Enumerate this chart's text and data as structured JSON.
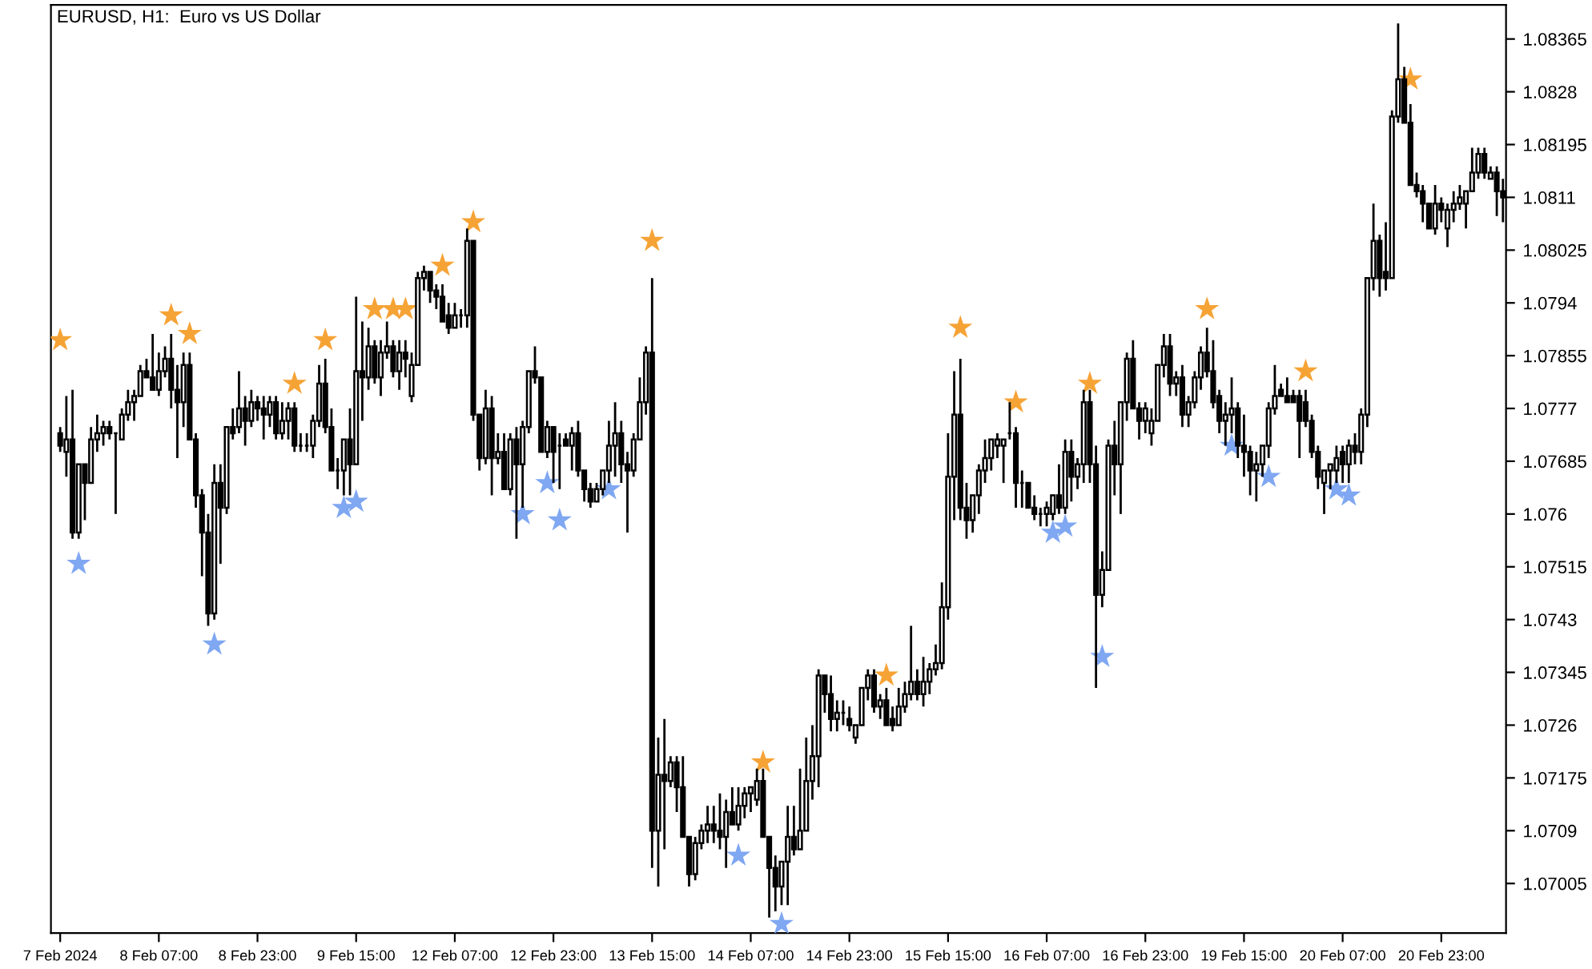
{
  "chart_data": {
    "type": "candlestick",
    "title": "EURUSD, H1:  Euro vs US Dollar",
    "categories": [
      "7 Feb 2024",
      null,
      null,
      null,
      null,
      null,
      null,
      null,
      null,
      null,
      null,
      null,
      null,
      null,
      null,
      null,
      "8 Feb 07:00",
      null,
      null,
      null,
      null,
      null,
      null,
      null,
      null,
      null,
      null,
      null,
      null,
      null,
      null,
      null,
      "8 Feb 23:00",
      null,
      null,
      null,
      null,
      null,
      null,
      null,
      null,
      null,
      null,
      null,
      null,
      null,
      null,
      null,
      "9 Feb 15:00",
      null,
      null,
      null,
      null,
      null,
      null,
      null,
      null,
      null,
      null,
      null,
      null,
      null,
      null,
      null,
      "12 Feb 07:00",
      null,
      null,
      null,
      null,
      null,
      null,
      null,
      null,
      null,
      null,
      null,
      null,
      null,
      null,
      null,
      "12 Feb 23:00",
      null,
      null,
      null,
      null,
      null,
      null,
      null,
      null,
      null,
      null,
      null,
      null,
      null,
      null,
      null,
      "13 Feb 15:00",
      null,
      null,
      null,
      null,
      null,
      null,
      null,
      null,
      null,
      null,
      null,
      null,
      null,
      null,
      null,
      "14 Feb 07:00",
      null,
      null,
      null,
      null,
      null,
      null,
      null,
      null,
      null,
      null,
      null,
      null,
      null,
      null,
      null,
      "14 Feb 23:00",
      null,
      null,
      null,
      null,
      null,
      null,
      null,
      null,
      null,
      null,
      null,
      null,
      null,
      null,
      null,
      "15 Feb 15:00",
      null,
      null,
      null,
      null,
      null,
      null,
      null,
      null,
      null,
      null,
      null,
      null,
      null,
      null,
      null,
      "16 Feb 07:00",
      null,
      null,
      null,
      null,
      null,
      null,
      null,
      null,
      null,
      null,
      null,
      null,
      null,
      null,
      null,
      "16 Feb 23:00",
      null,
      null,
      null,
      null,
      null,
      null,
      null,
      null,
      null,
      null,
      null,
      null,
      null,
      null,
      null,
      "19 Feb 15:00",
      null,
      null,
      null,
      null,
      null,
      null,
      null,
      null,
      null,
      null,
      null,
      null,
      null,
      null,
      null,
      "20 Feb 07:00",
      null,
      null,
      null,
      null,
      null,
      null,
      null,
      null,
      null,
      null,
      null,
      null,
      null,
      null,
      null,
      "20 Feb 23:00",
      null,
      null,
      null,
      null,
      null,
      null,
      null,
      null,
      null,
      null
    ],
    "ohlc": [
      [
        1.0773,
        1.0774,
        1.077,
        1.0771
      ],
      [
        1.077,
        1.0779,
        1.0766,
        1.0772
      ],
      [
        1.0772,
        1.078,
        1.0756,
        1.0757
      ],
      [
        1.0757,
        1.0768,
        1.0756,
        1.0768
      ],
      [
        1.0768,
        1.0768,
        1.0759,
        1.0765
      ],
      [
        1.0765,
        1.0774,
        1.0765,
        1.0772
      ],
      [
        1.0772,
        1.0776,
        1.077,
        1.0773
      ],
      [
        1.0773,
        1.0775,
        1.0771,
        1.0774
      ],
      [
        1.0774,
        1.0775,
        1.0772,
        1.0773
      ],
      [
        1.0773,
        1.0773,
        1.076,
        1.0773
      ],
      [
        1.0772,
        1.0777,
        1.0772,
        1.0776
      ],
      [
        1.0776,
        1.078,
        1.0775,
        1.0778
      ],
      [
        1.0778,
        1.078,
        1.0775,
        1.0779
      ],
      [
        1.0779,
        1.0784,
        1.0779,
        1.0783
      ],
      [
        1.0783,
        1.0785,
        1.0782,
        1.0782
      ],
      [
        1.0782,
        1.0789,
        1.078,
        1.078
      ],
      [
        1.078,
        1.0786,
        1.0779,
        1.0783
      ],
      [
        1.0783,
        1.0787,
        1.0782,
        1.0785
      ],
      [
        1.0785,
        1.0789,
        1.0777,
        1.078
      ],
      [
        1.078,
        1.0784,
        1.0769,
        1.0778
      ],
      [
        1.0778,
        1.0786,
        1.0774,
        1.0784
      ],
      [
        1.0784,
        1.0786,
        1.0772,
        1.0772
      ],
      [
        1.0772,
        1.0773,
        1.0761,
        1.0763
      ],
      [
        1.0763,
        1.0764,
        1.075,
        1.0757
      ],
      [
        1.0757,
        1.076,
        1.0742,
        1.0744
      ],
      [
        1.0744,
        1.0768,
        1.0743,
        1.0765
      ],
      [
        1.0765,
        1.0768,
        1.0752,
        1.0761
      ],
      [
        1.0761,
        1.0774,
        1.076,
        1.0774
      ],
      [
        1.0774,
        1.0777,
        1.0772,
        1.0773
      ],
      [
        1.0774,
        1.0783,
        1.0773,
        1.0777
      ],
      [
        1.0777,
        1.0779,
        1.0771,
        1.0775
      ],
      [
        1.0775,
        1.078,
        1.0774,
        1.0778
      ],
      [
        1.0778,
        1.0779,
        1.0775,
        1.0777
      ],
      [
        1.0777,
        1.0779,
        1.0772,
        1.0776
      ],
      [
        1.0776,
        1.0779,
        1.0774,
        1.0778
      ],
      [
        1.0778,
        1.0779,
        1.0772,
        1.0773
      ],
      [
        1.0773,
        1.0778,
        1.0772,
        1.0775
      ],
      [
        1.0775,
        1.0778,
        1.0772,
        1.0777
      ],
      [
        1.0777,
        1.0778,
        1.077,
        1.0771
      ],
      [
        1.0771,
        1.0773,
        1.077,
        1.0771
      ],
      [
        1.0771,
        1.0773,
        1.077,
        1.0771
      ],
      [
        1.0771,
        1.0776,
        1.0769,
        1.0775
      ],
      [
        1.0775,
        1.0784,
        1.0774,
        1.0781
      ],
      [
        1.0781,
        1.0785,
        1.0773,
        1.0774
      ],
      [
        1.0774,
        1.0777,
        1.0767,
        1.0767
      ],
      [
        1.0767,
        1.0769,
        1.0764,
        1.0767
      ],
      [
        1.0767,
        1.0772,
        1.0763,
        1.0772
      ],
      [
        1.0772,
        1.0777,
        1.0763,
        1.0768
      ],
      [
        1.0768,
        1.0795,
        1.0768,
        1.0783
      ],
      [
        1.0783,
        1.0791,
        1.0775,
        1.0782
      ],
      [
        1.0782,
        1.079,
        1.078,
        1.0787
      ],
      [
        1.0787,
        1.0788,
        1.0781,
        1.0782
      ],
      [
        1.0782,
        1.0788,
        1.0779,
        1.0786
      ],
      [
        1.0786,
        1.0791,
        1.0785,
        1.0787
      ],
      [
        1.0787,
        1.0788,
        1.0782,
        1.0783
      ],
      [
        1.0783,
        1.0788,
        1.078,
        1.0786
      ],
      [
        1.0786,
        1.0788,
        1.0782,
        1.0785
      ],
      [
        1.0779,
        1.0786,
        1.0778,
        1.0784
      ],
      [
        1.0784,
        1.0799,
        1.0784,
        1.0798
      ],
      [
        1.0798,
        1.08,
        1.0796,
        1.0799
      ],
      [
        1.0799,
        1.0799,
        1.0794,
        1.0796
      ],
      [
        1.0796,
        1.0797,
        1.0793,
        1.0795
      ],
      [
        1.0795,
        1.0797,
        1.0791,
        1.0791
      ],
      [
        1.0792,
        1.0794,
        1.0789,
        1.079
      ],
      [
        1.079,
        1.0794,
        1.079,
        1.0792
      ],
      [
        1.0792,
        1.0793,
        1.079,
        1.0792
      ],
      [
        1.0792,
        1.0806,
        1.079,
        1.0804
      ],
      [
        1.0804,
        1.0804,
        1.0775,
        1.0776
      ],
      [
        1.0776,
        1.0776,
        1.0767,
        1.0769
      ],
      [
        1.0769,
        1.078,
        1.0768,
        1.0777
      ],
      [
        1.0777,
        1.0779,
        1.0763,
        1.0769
      ],
      [
        1.0769,
        1.0773,
        1.0768,
        1.077
      ],
      [
        1.077,
        1.0773,
        1.0764,
        1.0764
      ],
      [
        1.0764,
        1.0773,
        1.0763,
        1.0772
      ],
      [
        1.0772,
        1.0774,
        1.0756,
        1.0768
      ],
      [
        1.0768,
        1.0775,
        1.0761,
        1.0774
      ],
      [
        1.0774,
        1.0783,
        1.0773,
        1.0783
      ],
      [
        1.0783,
        1.0787,
        1.0781,
        1.0782
      ],
      [
        1.0782,
        1.0782,
        1.077,
        1.077
      ],
      [
        1.077,
        1.0775,
        1.0769,
        1.0774
      ],
      [
        1.0774,
        1.0774,
        1.0765,
        1.077
      ],
      [
        1.0771,
        1.0773,
        1.0764,
        1.0771
      ],
      [
        1.0772,
        1.0773,
        1.0771,
        1.0771
      ],
      [
        1.0771,
        1.0774,
        1.0767,
        1.0773
      ],
      [
        1.0773,
        1.0775,
        1.0766,
        1.0767
      ],
      [
        1.0767,
        1.0767,
        1.0762,
        1.0764
      ],
      [
        1.0764,
        1.0765,
        1.0761,
        1.0762
      ],
      [
        1.0762,
        1.0765,
        1.0762,
        1.0764
      ],
      [
        1.0764,
        1.0767,
        1.0763,
        1.0767
      ],
      [
        1.0767,
        1.0775,
        1.0765,
        1.0771
      ],
      [
        1.0771,
        1.0778,
        1.0766,
        1.0773
      ],
      [
        1.0773,
        1.0775,
        1.0765,
        1.0768
      ],
      [
        1.0768,
        1.077,
        1.0757,
        1.0767
      ],
      [
        1.0767,
        1.0773,
        1.0766,
        1.0772
      ],
      [
        1.0772,
        1.0782,
        1.0772,
        1.0778
      ],
      [
        1.0778,
        1.0787,
        1.0776,
        1.0786
      ],
      [
        1.0786,
        1.0798,
        1.0703,
        1.0709
      ],
      [
        1.0709,
        1.0724,
        1.07,
        1.0718
      ],
      [
        1.0718,
        1.0727,
        1.0706,
        1.0717
      ],
      [
        1.0717,
        1.0721,
        1.0716,
        1.072
      ],
      [
        1.072,
        1.0721,
        1.0712,
        1.0716
      ],
      [
        1.0716,
        1.0721,
        1.0708,
        1.0708
      ],
      [
        1.0708,
        1.0708,
        1.07,
        1.0702
      ],
      [
        1.0702,
        1.0708,
        1.0701,
        1.0707
      ],
      [
        1.0707,
        1.071,
        1.0706,
        1.0709
      ],
      [
        1.0709,
        1.0713,
        1.0707,
        1.071
      ],
      [
        1.071,
        1.0713,
        1.0707,
        1.0709
      ],
      [
        1.0709,
        1.0715,
        1.0706,
        1.0708
      ],
      [
        1.0708,
        1.0714,
        1.0703,
        1.0712
      ],
      [
        1.0712,
        1.0716,
        1.071,
        1.071
      ],
      [
        1.071,
        1.0716,
        1.0709,
        1.0713
      ],
      [
        1.0713,
        1.0716,
        1.0711,
        1.0715
      ],
      [
        1.0715,
        1.0716,
        1.0712,
        1.0716
      ],
      [
        1.0714,
        1.0719,
        1.0713,
        1.0717
      ],
      [
        1.0717,
        1.0719,
        1.0708,
        1.0708
      ],
      [
        1.0708,
        1.0708,
        1.0695,
        1.0703
      ],
      [
        1.0703,
        1.0705,
        1.0696,
        1.07
      ],
      [
        1.07,
        1.0704,
        1.0697,
        1.0704
      ],
      [
        1.0704,
        1.0713,
        1.0697,
        1.0708
      ],
      [
        1.0708,
        1.0713,
        1.0705,
        1.0706
      ],
      [
        1.0706,
        1.0719,
        1.0706,
        1.0709
      ],
      [
        1.0709,
        1.0724,
        1.0709,
        1.0717
      ],
      [
        1.0717,
        1.0726,
        1.0714,
        1.0721
      ],
      [
        1.0721,
        1.0735,
        1.0716,
        1.0734
      ],
      [
        1.0734,
        1.0734,
        1.0728,
        1.0731
      ],
      [
        1.0731,
        1.0734,
        1.0725,
        1.0727
      ],
      [
        1.0727,
        1.073,
        1.0725,
        1.0728
      ],
      [
        1.0728,
        1.073,
        1.0726,
        1.0728
      ],
      [
        1.0727,
        1.0729,
        1.0725,
        1.0726
      ],
      [
        1.0724,
        1.0726,
        1.0723,
        1.0726
      ],
      [
        1.0726,
        1.0732,
        1.0726,
        1.0732
      ],
      [
        1.0732,
        1.0735,
        1.073,
        1.0734
      ],
      [
        1.0734,
        1.0735,
        1.0728,
        1.0729
      ],
      [
        1.0729,
        1.0731,
        1.0727,
        1.073
      ],
      [
        1.073,
        1.0732,
        1.0726,
        1.0726
      ],
      [
        1.0727,
        1.0729,
        1.0725,
        1.0726
      ],
      [
        1.0726,
        1.0732,
        1.0726,
        1.0729
      ],
      [
        1.0729,
        1.0733,
        1.0728,
        1.0731
      ],
      [
        1.0731,
        1.0742,
        1.073,
        1.0733
      ],
      [
        1.0733,
        1.0735,
        1.073,
        1.0731
      ],
      [
        1.0731,
        1.0737,
        1.0729,
        1.0733
      ],
      [
        1.0733,
        1.0736,
        1.0731,
        1.0735
      ],
      [
        1.0735,
        1.0739,
        1.0734,
        1.0736
      ],
      [
        1.0736,
        1.0749,
        1.0735,
        1.0745
      ],
      [
        1.0745,
        1.0773,
        1.0743,
        1.0766
      ],
      [
        1.0766,
        1.0783,
        1.0759,
        1.0776
      ],
      [
        1.0776,
        1.0785,
        1.0759,
        1.0761
      ],
      [
        1.0761,
        1.0765,
        1.0756,
        1.0759
      ],
      [
        1.0759,
        1.0763,
        1.0757,
        1.0763
      ],
      [
        1.0763,
        1.0768,
        1.076,
        1.0767
      ],
      [
        1.0767,
        1.0772,
        1.0765,
        1.0769
      ],
      [
        1.0769,
        1.0772,
        1.0767,
        1.0772
      ],
      [
        1.0771,
        1.0773,
        1.0769,
        1.0772
      ],
      [
        1.0771,
        1.0772,
        1.0765,
        1.0772
      ],
      [
        1.0773,
        1.0778,
        1.0772,
        1.0773
      ],
      [
        1.0773,
        1.0774,
        1.0761,
        1.0765
      ],
      [
        1.0765,
        1.0767,
        1.0761,
        1.0765
      ],
      [
        1.0765,
        1.0765,
        1.0761,
        1.0761
      ],
      [
        1.0761,
        1.0763,
        1.0759,
        1.076
      ],
      [
        1.076,
        1.0761,
        1.0758,
        1.076
      ],
      [
        1.076,
        1.0762,
        1.0758,
        1.0761
      ],
      [
        1.076,
        1.0763,
        1.0759,
        1.0763
      ],
      [
        1.0763,
        1.0768,
        1.076,
        1.0761
      ],
      [
        1.0761,
        1.0772,
        1.076,
        1.077
      ],
      [
        1.077,
        1.0772,
        1.0762,
        1.0766
      ],
      [
        1.0766,
        1.0769,
        1.0764,
        1.0768
      ],
      [
        1.0768,
        1.078,
        1.0765,
        1.0778
      ],
      [
        1.0778,
        1.078,
        1.0765,
        1.0768
      ],
      [
        1.0768,
        1.0771,
        1.0732,
        1.0747
      ],
      [
        1.0747,
        1.0754,
        1.0745,
        1.0751
      ],
      [
        1.0751,
        1.0772,
        1.0751,
        1.0771
      ],
      [
        1.0771,
        1.0775,
        1.0763,
        1.0768
      ],
      [
        1.0768,
        1.0778,
        1.076,
        1.0778
      ],
      [
        1.0778,
        1.0786,
        1.0775,
        1.0785
      ],
      [
        1.0785,
        1.0788,
        1.0777,
        1.0777
      ],
      [
        1.0777,
        1.0778,
        1.0772,
        1.0775
      ],
      [
        1.0775,
        1.0778,
        1.0773,
        1.0777
      ],
      [
        1.0773,
        1.0777,
        1.0771,
        1.0775
      ],
      [
        1.0775,
        1.0784,
        1.0775,
        1.0784
      ],
      [
        1.0784,
        1.0789,
        1.0782,
        1.0787
      ],
      [
        1.0787,
        1.0789,
        1.0779,
        1.0781
      ],
      [
        1.0781,
        1.0783,
        1.0779,
        1.0782
      ],
      [
        1.0782,
        1.0784,
        1.0774,
        1.0776
      ],
      [
        1.0776,
        1.0779,
        1.0774,
        1.0778
      ],
      [
        1.0778,
        1.0783,
        1.0777,
        1.0782
      ],
      [
        1.0782,
        1.0787,
        1.078,
        1.0786
      ],
      [
        1.0786,
        1.079,
        1.0782,
        1.0783
      ],
      [
        1.0783,
        1.0788,
        1.0777,
        1.0778
      ],
      [
        1.0779,
        1.078,
        1.0773,
        1.0775
      ],
      [
        1.0775,
        1.0778,
        1.0771,
        1.0776
      ],
      [
        1.0776,
        1.0782,
        1.0773,
        1.0777
      ],
      [
        1.0777,
        1.0778,
        1.0769,
        1.0771
      ],
      [
        1.0771,
        1.0776,
        1.0766,
        1.077
      ],
      [
        1.077,
        1.0771,
        1.0763,
        1.0767
      ],
      [
        1.0767,
        1.077,
        1.0762,
        1.0768
      ],
      [
        1.0768,
        1.0771,
        1.0766,
        1.0771
      ],
      [
        1.0771,
        1.0778,
        1.0769,
        1.0777
      ],
      [
        1.0777,
        1.0784,
        1.0776,
        1.0779
      ],
      [
        1.078,
        1.0781,
        1.0779,
        1.0779
      ],
      [
        1.0779,
        1.0782,
        1.0778,
        1.0778
      ],
      [
        1.0779,
        1.078,
        1.0778,
        1.0778
      ],
      [
        1.0779,
        1.078,
        1.0769,
        1.0775
      ],
      [
        1.0778,
        1.078,
        1.0774,
        1.0775
      ],
      [
        1.0775,
        1.0776,
        1.0769,
        1.077
      ],
      [
        1.077,
        1.0771,
        1.0764,
        1.0766
      ],
      [
        1.0765,
        1.0767,
        1.076,
        1.0767
      ],
      [
        1.0767,
        1.0768,
        1.0764,
        1.0768
      ],
      [
        1.0767,
        1.0771,
        1.0765,
        1.0769
      ],
      [
        1.077,
        1.0771,
        1.0765,
        1.0768
      ],
      [
        1.0768,
        1.0772,
        1.0765,
        1.0771
      ],
      [
        1.0771,
        1.0773,
        1.0768,
        1.077
      ],
      [
        1.077,
        1.0777,
        1.0768,
        1.0776
      ],
      [
        1.0776,
        1.0798,
        1.0774,
        1.0798
      ],
      [
        1.0798,
        1.081,
        1.0796,
        1.0804
      ],
      [
        1.0804,
        1.0805,
        1.0795,
        1.0798
      ],
      [
        1.0799,
        1.0807,
        1.0796,
        1.0798
      ],
      [
        1.0798,
        1.0825,
        1.0798,
        1.0824
      ],
      [
        1.0824,
        1.0839,
        1.0823,
        1.083
      ],
      [
        1.083,
        1.0832,
        1.0823,
        1.0823
      ],
      [
        1.0823,
        1.0826,
        1.0813,
        1.0813
      ],
      [
        1.0813,
        1.0815,
        1.0811,
        1.0812
      ],
      [
        1.0812,
        1.0813,
        1.0807,
        1.081
      ],
      [
        1.081,
        1.081,
        1.0806,
        1.0806
      ],
      [
        1.0806,
        1.0813,
        1.0805,
        1.081
      ],
      [
        1.081,
        1.0811,
        1.0807,
        1.0809
      ],
      [
        1.0806,
        1.081,
        1.0803,
        1.0809
      ],
      [
        1.0809,
        1.0812,
        1.0807,
        1.081
      ],
      [
        1.081,
        1.0813,
        1.0809,
        1.0811
      ],
      [
        1.081,
        1.0812,
        1.0806,
        1.0812
      ],
      [
        1.0812,
        1.0819,
        1.0812,
        1.0815
      ],
      [
        1.0815,
        1.0819,
        1.0814,
        1.0818
      ],
      [
        1.0818,
        1.0819,
        1.0814,
        1.0815
      ],
      [
        1.0814,
        1.0816,
        1.0814,
        1.0815
      ],
      [
        1.0815,
        1.0816,
        1.0808,
        1.0812
      ],
      [
        1.0812,
        1.0814,
        1.0807,
        1.0811
      ]
    ],
    "series": [
      {
        "type": "scatter",
        "marker": "star",
        "color": "#f6a336",
        "values": [
          1.0788,
          null,
          null,
          null,
          null,
          null,
          null,
          null,
          null,
          null,
          null,
          null,
          null,
          null,
          null,
          null,
          null,
          null,
          1.0792,
          null,
          null,
          1.0789,
          null,
          null,
          null,
          null,
          null,
          null,
          null,
          null,
          null,
          null,
          null,
          null,
          null,
          null,
          null,
          null,
          1.0781,
          null,
          null,
          null,
          null,
          1.0788,
          null,
          null,
          null,
          null,
          null,
          null,
          null,
          1.0793,
          null,
          null,
          1.0793,
          null,
          1.0793,
          null,
          null,
          null,
          null,
          null,
          1.08,
          null,
          null,
          null,
          null,
          1.0807,
          null,
          null,
          null,
          null,
          null,
          null,
          null,
          null,
          null,
          null,
          null,
          null,
          null,
          null,
          null,
          null,
          null,
          null,
          null,
          null,
          null,
          null,
          null,
          null,
          null,
          null,
          null,
          null,
          1.0804,
          null,
          null,
          null,
          null,
          null,
          null,
          null,
          null,
          null,
          null,
          null,
          null,
          null,
          null,
          null,
          null,
          null,
          1.072,
          null,
          null,
          null,
          null,
          null,
          null,
          null,
          null,
          null,
          null,
          null,
          null,
          null,
          null,
          null,
          null,
          null,
          null,
          null,
          1.0734,
          null,
          null,
          null,
          null,
          null,
          null,
          null,
          null,
          null,
          null,
          null,
          1.079,
          null,
          null,
          null,
          null,
          null,
          null,
          null,
          null,
          1.0778,
          null,
          null,
          null,
          null,
          null,
          null,
          null,
          null,
          null,
          null,
          null,
          1.0781,
          null,
          null,
          null,
          null,
          null,
          null,
          null,
          null,
          null,
          null,
          null,
          null,
          null,
          null,
          null,
          null,
          null,
          null,
          1.0793,
          null,
          null,
          null,
          null,
          null,
          null,
          null,
          null,
          null,
          null,
          null,
          null,
          null,
          null,
          null,
          1.0783,
          null,
          null,
          null,
          null,
          null,
          null,
          null,
          null,
          null,
          null,
          null,
          null,
          null,
          null,
          null,
          null,
          1.083,
          null,
          null,
          null,
          null,
          null,
          null,
          null,
          null,
          null,
          null,
          null,
          null,
          null,
          null,
          null
        ]
      },
      {
        "type": "scatter",
        "marker": "star",
        "color": "#7fa7f2",
        "values": [
          null,
          null,
          null,
          1.0752,
          null,
          null,
          null,
          null,
          null,
          null,
          null,
          null,
          null,
          null,
          null,
          null,
          null,
          null,
          null,
          null,
          null,
          null,
          null,
          null,
          null,
          1.0739,
          null,
          null,
          null,
          null,
          null,
          null,
          null,
          null,
          null,
          null,
          null,
          null,
          null,
          null,
          null,
          null,
          null,
          null,
          null,
          null,
          1.0761,
          null,
          1.0762,
          null,
          null,
          null,
          null,
          null,
          null,
          null,
          null,
          null,
          null,
          null,
          null,
          null,
          null,
          null,
          null,
          null,
          null,
          null,
          null,
          null,
          null,
          null,
          null,
          null,
          null,
          1.076,
          null,
          null,
          null,
          1.0765,
          null,
          1.0759,
          null,
          null,
          null,
          null,
          null,
          null,
          null,
          1.0764,
          null,
          null,
          null,
          null,
          null,
          null,
          null,
          null,
          null,
          null,
          null,
          null,
          null,
          null,
          null,
          null,
          null,
          null,
          null,
          null,
          1.0705,
          null,
          null,
          null,
          null,
          null,
          null,
          1.0694,
          null,
          null,
          null,
          null,
          null,
          null,
          null,
          null,
          null,
          null,
          null,
          null,
          null,
          null,
          null,
          null,
          null,
          null,
          null,
          null,
          null,
          null,
          null,
          null,
          null,
          null,
          null,
          null,
          null,
          null,
          null,
          null,
          null,
          null,
          null,
          null,
          null,
          null,
          null,
          null,
          null,
          null,
          null,
          1.0757,
          null,
          1.0758,
          null,
          null,
          null,
          null,
          null,
          1.0737,
          null,
          null,
          null,
          null,
          null,
          null,
          null,
          null,
          null,
          null,
          null,
          null,
          null,
          null,
          null,
          null,
          null,
          null,
          null,
          null,
          1.0771,
          null,
          null,
          null,
          null,
          null,
          1.0766,
          null,
          null,
          null,
          null,
          null,
          null,
          null,
          null,
          null,
          null,
          1.0764,
          null,
          1.0763,
          null,
          null,
          null,
          null,
          null,
          null,
          null,
          null,
          null,
          null,
          null,
          null,
          null,
          null,
          null,
          null,
          null,
          null,
          null,
          null,
          null,
          null,
          null,
          null,
          null
        ]
      }
    ],
    "ylim": [
      1.06925,
      1.0842
    ],
    "yticks": [
      1.07005,
      1.0709,
      1.07175,
      1.0726,
      1.07345,
      1.0743,
      1.07515,
      1.076,
      1.07685,
      1.0777,
      1.07855,
      1.0794,
      1.08025,
      1.0811,
      1.08195,
      1.0828,
      1.08365
    ],
    "grid": false,
    "legend": false
  }
}
